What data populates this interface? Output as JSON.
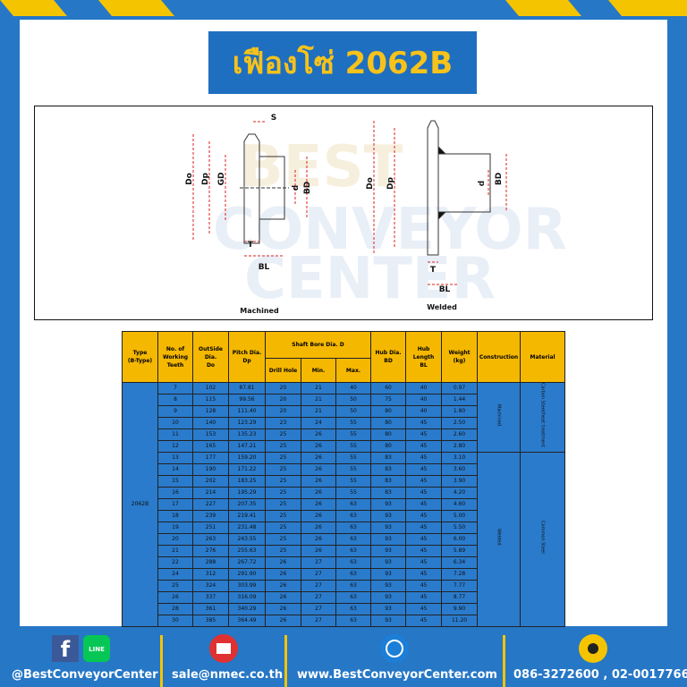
{
  "header": {
    "title": "เฟืองโซ่ 2062B"
  },
  "watermark": [
    "BEST",
    "CONVEYOR",
    "CENTER"
  ],
  "diagram": {
    "machined": {
      "caption": "Machined",
      "labels": [
        "S",
        "Do",
        "Dp",
        "GD",
        "d",
        "BD",
        "T",
        "BL"
      ]
    },
    "welded": {
      "caption": "Welded",
      "labels": [
        "Do",
        "Dp",
        "d",
        "BD",
        "T",
        "BL"
      ]
    }
  },
  "table": {
    "columns": [
      {
        "lines": [
          "Type",
          "(B-Type)"
        ]
      },
      {
        "lines": [
          "No. of",
          "Working",
          "Teeth"
        ]
      },
      {
        "lines": [
          "OutSide",
          "Dia.",
          "Do"
        ]
      },
      {
        "lines": [
          "Pitch Dia.",
          "Dp"
        ]
      },
      {
        "lines": [
          "Shaft Bore Dia. D"
        ]
      },
      {
        "lines": [
          "Hub Dia.",
          "BD"
        ]
      },
      {
        "lines": [
          "Hub",
          "Length",
          "BL"
        ]
      },
      {
        "lines": [
          "Weight",
          "(kg)"
        ]
      },
      {
        "lines": [
          "Construction"
        ]
      },
      {
        "lines": [
          "Material"
        ]
      }
    ],
    "subcolumns": [
      "Drill Hole",
      "Min.",
      "Max."
    ],
    "type": "2062B",
    "groups": [
      {
        "construction": "Machined",
        "material": "Carbon Steel/heat treatment",
        "rows": [
          [
            "7",
            "102",
            "87.81",
            "20",
            "21",
            "40",
            "60",
            "40",
            "0.97"
          ],
          [
            "8",
            "115",
            "99.56",
            "20",
            "21",
            "50",
            "75",
            "40",
            "1.44"
          ],
          [
            "9",
            "128",
            "111.40",
            "20",
            "21",
            "50",
            "80",
            "40",
            "1.80"
          ],
          [
            "10",
            "140",
            "123.29",
            "23",
            "24",
            "55",
            "80",
            "45",
            "2.50"
          ],
          [
            "11",
            "153",
            "135.23",
            "25",
            "26",
            "55",
            "80",
            "45",
            "2.60"
          ],
          [
            "12",
            "165",
            "147.21",
            "25",
            "26",
            "55",
            "80",
            "45",
            "2.80"
          ]
        ]
      },
      {
        "construction": "Welded",
        "material": "Common Steel",
        "rows": [
          [
            "13",
            "177",
            "159.20",
            "25",
            "26",
            "55",
            "83",
            "45",
            "3.10"
          ],
          [
            "14",
            "190",
            "171.22",
            "25",
            "26",
            "55",
            "83",
            "45",
            "3.60"
          ],
          [
            "15",
            "202",
            "183.25",
            "25",
            "26",
            "55",
            "83",
            "45",
            "3.90"
          ],
          [
            "16",
            "214",
            "195.29",
            "25",
            "26",
            "55",
            "83",
            "45",
            "4.20"
          ],
          [
            "17",
            "227",
            "207.35",
            "25",
            "26",
            "63",
            "93",
            "45",
            "4.60"
          ],
          [
            "18",
            "239",
            "219.41",
            "25",
            "26",
            "63",
            "93",
            "45",
            "5.00"
          ],
          [
            "19",
            "251",
            "231.48",
            "25",
            "26",
            "63",
            "93",
            "45",
            "5.50"
          ],
          [
            "20",
            "263",
            "243.55",
            "25",
            "26",
            "63",
            "93",
            "45",
            "6.00"
          ],
          [
            "21",
            "276",
            "255.63",
            "25",
            "26",
            "63",
            "93",
            "45",
            "5.89"
          ],
          [
            "22",
            "288",
            "267.72",
            "26",
            "27",
            "63",
            "93",
            "45",
            "6.34"
          ],
          [
            "24",
            "312",
            "291.90",
            "26",
            "27",
            "63",
            "93",
            "45",
            "7.28"
          ],
          [
            "25",
            "324",
            "303.99",
            "26",
            "27",
            "63",
            "93",
            "45",
            "7.77"
          ],
          [
            "26",
            "337",
            "316.09",
            "26",
            "27",
            "63",
            "93",
            "45",
            "8.77"
          ],
          [
            "28",
            "361",
            "340.29",
            "26",
            "27",
            "63",
            "93",
            "45",
            "9.90"
          ],
          [
            "30",
            "385",
            "364.49",
            "26",
            "27",
            "63",
            "93",
            "45",
            "11.20"
          ]
        ]
      }
    ]
  },
  "footer": {
    "social": "@BestConveyorCenter",
    "line": "LINE",
    "email": "sale@nmec.co.th",
    "website": "www.BestConveyorCenter.com",
    "phone": "086-3272600 , 02-0017766"
  }
}
